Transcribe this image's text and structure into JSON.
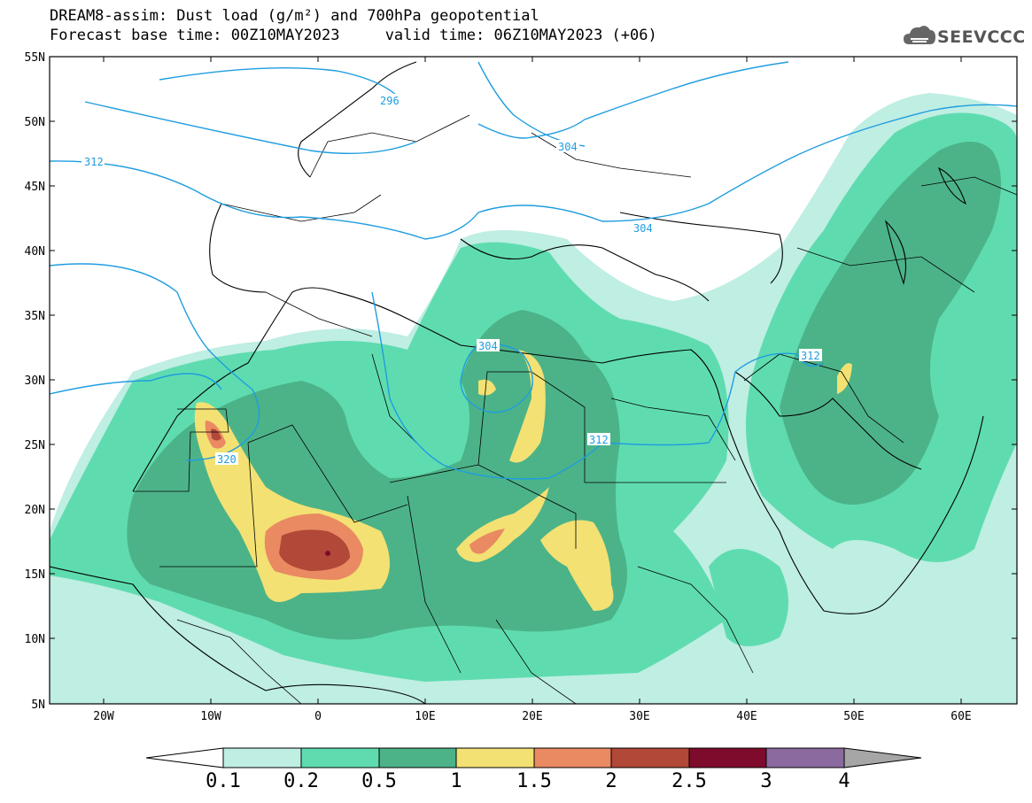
{
  "title": {
    "line1": "DREAM8-assim: Dust load (g/m²) and 700hPa geopotential",
    "line2": "Forecast base time: 00Z10MAY2023     valid time: 06Z10MAY2023 (+06)"
  },
  "logo": {
    "text": "SEEVCCC",
    "icon": "cloud-icon"
  },
  "map": {
    "lat_labels": [
      "55N",
      "50N",
      "45N",
      "40N",
      "35N",
      "30N",
      "25N",
      "20N",
      "15N",
      "10N",
      "5N"
    ],
    "lon_labels": [
      "20W",
      "10W",
      "0",
      "10E",
      "20E",
      "30E",
      "40E",
      "50E",
      "60E"
    ],
    "contour_labels": [
      "296",
      "304",
      "304",
      "312",
      "304",
      "312",
      "312",
      "320"
    ]
  },
  "colorbar": {
    "labels": [
      "0.1",
      "0.2",
      "0.5",
      "1",
      "1.5",
      "2",
      "2.5",
      "3",
      "4"
    ],
    "colors": [
      "#bfeee3",
      "#5fdcaf",
      "#4cb388",
      "#f3e173",
      "#e98a62",
      "#b24837",
      "#7f0b2c",
      "#8b6aa0",
      "#a6a6a6"
    ]
  },
  "colors": {
    "level1": "#bfeee3",
    "level2": "#5fdcaf",
    "level3": "#4cb388",
    "level4": "#f3e173",
    "level5": "#e98a62",
    "level6": "#b24837",
    "level7": "#7f0b2c",
    "contour": "#1f9de0"
  }
}
